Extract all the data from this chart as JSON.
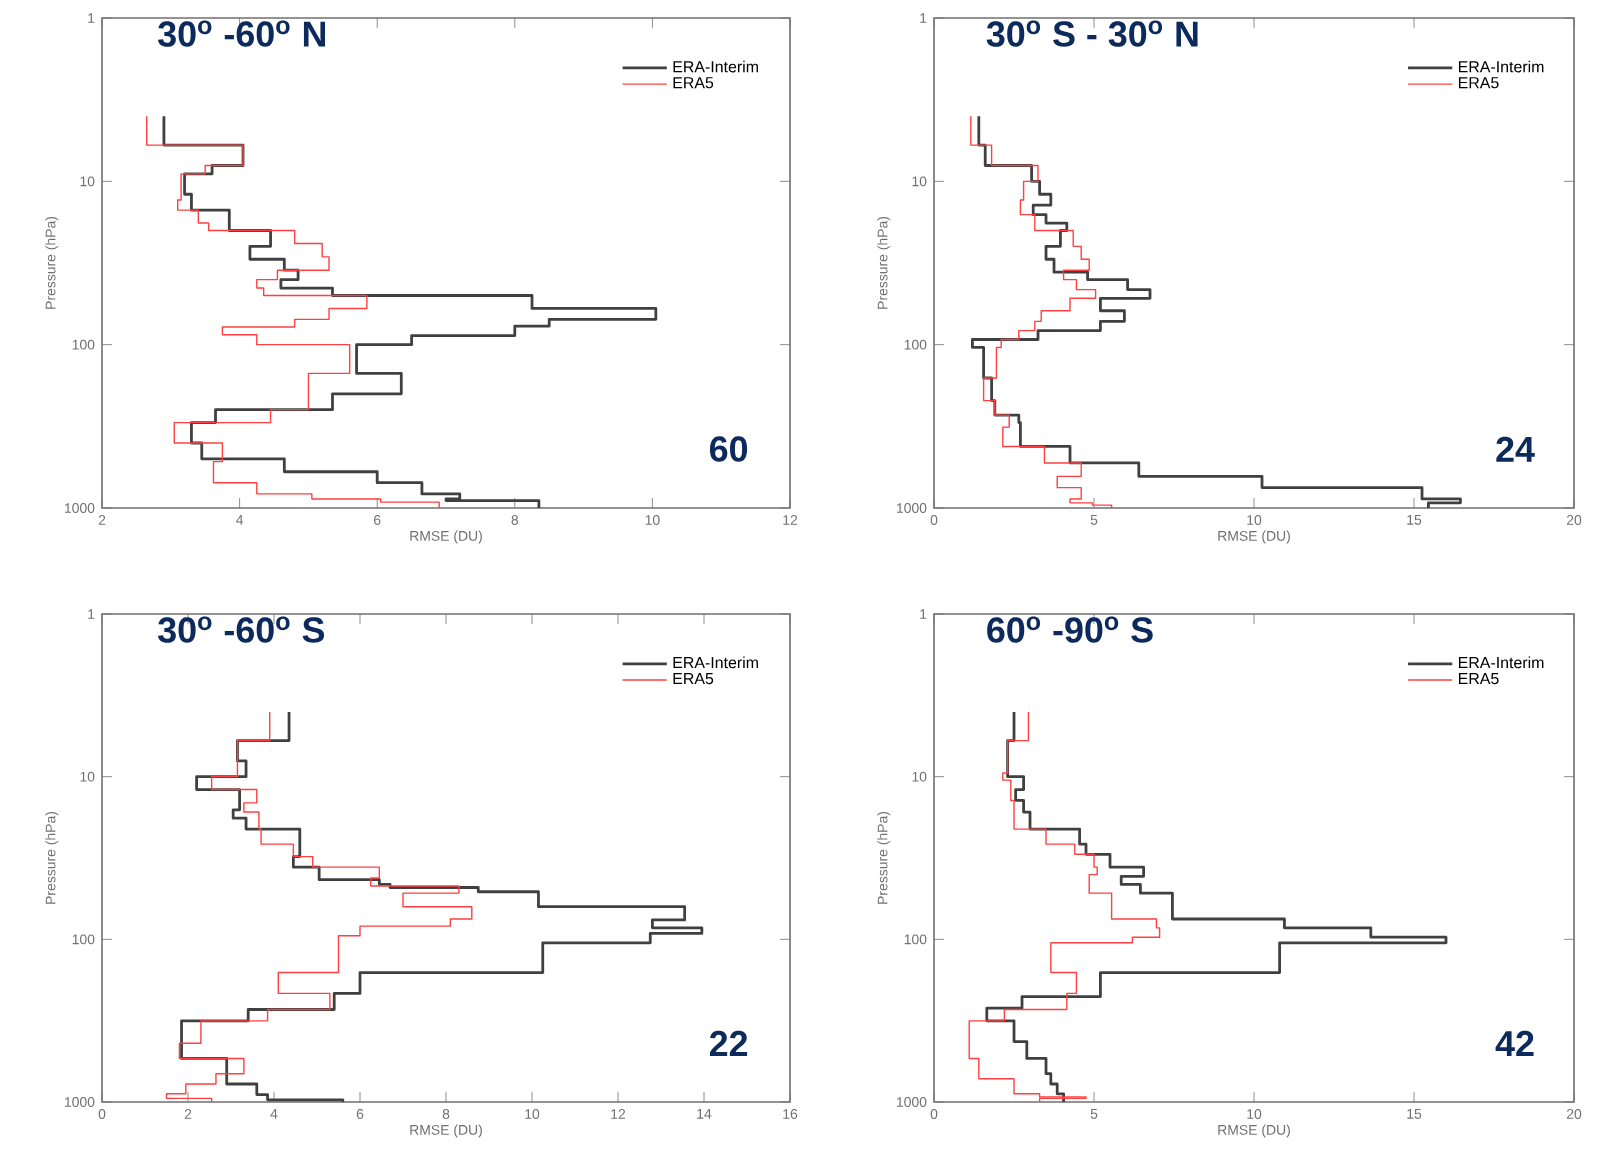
{
  "chart_data": [
    {
      "type": "step",
      "title": "30$^{o}$ -60$^{o}$ N",
      "xlabel": "RMSE (DU)",
      "ylabel": "Pressure (hPa)",
      "xlim": [
        2,
        12
      ],
      "xticks": [
        2,
        4,
        6,
        8,
        10,
        12
      ],
      "ylim": [
        1000,
        1
      ],
      "yticks": [
        1,
        10,
        100,
        1000
      ],
      "log": "y",
      "legend": "top right",
      "annotations": [
        "60"
      ],
      "series": [
        {
          "name": "ERA-Interim",
          "color": "#404040",
          "x": [
            2.9,
            4.05,
            3.6,
            3.2,
            3.3,
            3.85,
            4.45,
            4.15,
            4.65,
            4.85,
            4.6,
            5.35,
            8.25,
            10.05,
            8.5,
            8.0,
            6.5,
            5.7,
            6.35,
            5.35,
            3.65,
            3.3,
            3.45,
            4.65,
            6.0,
            6.65,
            7.2,
            7.0,
            8.35,
            8.35
          ],
          "values": [
            4,
            6,
            8,
            9,
            12,
            15,
            20,
            25,
            30,
            35,
            40,
            45,
            50,
            60,
            70,
            77,
            88,
            100,
            150,
            200,
            250,
            300,
            400,
            500,
            600,
            700,
            820,
            880,
            900,
            1000
          ]
        },
        {
          "name": "ERA5",
          "color": "#ff4040",
          "x": [
            2.65,
            4.05,
            3.5,
            3.15,
            3.1,
            3.4,
            3.55,
            4.8,
            5.2,
            5.3,
            4.55,
            4.25,
            4.35,
            5.85,
            5.3,
            4.8,
            3.75,
            4.25,
            5.6,
            5.0,
            4.45,
            3.05,
            3.75,
            3.62,
            4.25,
            5.05,
            6.05,
            6.9,
            6.9
          ],
          "values": [
            4,
            6,
            8,
            9,
            13,
            15,
            18,
            20,
            24,
            29,
            35,
            40,
            45,
            50,
            60,
            70,
            78,
            87,
            100,
            150,
            250,
            300,
            400,
            520,
            700,
            820,
            880,
            920,
            1000
          ]
        }
      ]
    },
    {
      "type": "step",
      "title": "30$^{o}$ S - 30$^{o}$ N",
      "xlabel": "RMSE (DU)",
      "ylabel": "Pressure (hPa)",
      "xlim": [
        0,
        20
      ],
      "xticks": [
        0,
        5,
        10,
        15,
        20
      ],
      "ylim": [
        1000,
        1
      ],
      "yticks": [
        1,
        10,
        100,
        1000
      ],
      "log": "y",
      "legend": "top right",
      "annotations": [
        "24"
      ],
      "series": [
        {
          "name": "ERA-Interim",
          "color": "#404040",
          "x": [
            1.4,
            1.6,
            3.05,
            3.3,
            3.65,
            3.1,
            3.5,
            4.15,
            3.95,
            3.5,
            3.75,
            4.8,
            6.05,
            6.75,
            5.2,
            5.95,
            5.2,
            3.25,
            1.2,
            1.55,
            1.8,
            1.9,
            2.65,
            2.7,
            4.25,
            6.4,
            10.25,
            15.25,
            16.45,
            15.45,
            15.45
          ],
          "values": [
            4,
            6,
            8,
            10,
            12,
            14,
            16,
            18,
            20,
            25,
            30,
            36,
            40,
            46,
            52,
            62,
            72,
            82,
            93,
            104,
            160,
            220,
            270,
            300,
            420,
            530,
            640,
            750,
            880,
            930,
            1000
          ]
        },
        {
          "name": "ERA5",
          "color": "#ff4040",
          "x": [
            1.15,
            1.8,
            3.25,
            2.8,
            2.7,
            3.15,
            4.35,
            4.6,
            4.85,
            4.05,
            4.45,
            5.05,
            4.25,
            3.35,
            3.15,
            2.65,
            2.1,
            1.95,
            1.55,
            1.9,
            2.35,
            2.15,
            3.45,
            4.6,
            3.85,
            4.6,
            4.25,
            4.95,
            5.55,
            5.55
          ],
          "values": [
            4,
            6,
            8,
            10,
            13,
            16,
            20,
            25,
            30,
            35,
            40,
            46,
            52,
            62,
            72,
            82,
            93,
            104,
            160,
            220,
            270,
            320,
            420,
            530,
            640,
            750,
            880,
            930,
            960,
            1000
          ]
        }
      ]
    },
    {
      "type": "step",
      "title": "30$^{o}$ -60$^{o}$ S",
      "xlabel": "RMSE (DU)",
      "ylabel": "Pressure (hPa)",
      "xlim": [
        0,
        16
      ],
      "xticks": [
        0,
        2,
        4,
        6,
        8,
        10,
        12,
        14,
        16
      ],
      "ylim": [
        1000,
        1
      ],
      "yticks": [
        1,
        10,
        100,
        1000
      ],
      "log": "y",
      "legend": "top right",
      "annotations": [
        "22"
      ],
      "series": [
        {
          "name": "ERA-Interim",
          "color": "#404040",
          "x": [
            4.35,
            3.15,
            3.35,
            2.2,
            3.2,
            3.05,
            3.35,
            4.6,
            4.45,
            5.05,
            6.45,
            6.7,
            8.75,
            10.15,
            13.55,
            12.8,
            13.95,
            12.75,
            10.25,
            6.0,
            5.4,
            3.4,
            1.85,
            2.9,
            3.6,
            3.85,
            5.6,
            5.6
          ],
          "values": [
            4,
            6,
            8,
            10,
            12,
            16,
            18,
            21,
            31,
            36,
            43,
            46,
            48,
            51,
            63,
            76,
            85,
            92,
            105,
            160,
            215,
            270,
            317,
            540,
            775,
            900,
            970,
            1000
          ]
        },
        {
          "name": "ERA5",
          "color": "#ff4040",
          "x": [
            3.9,
            3.15,
            2.55,
            3.6,
            3.3,
            3.65,
            3.7,
            4.45,
            4.9,
            6.45,
            6.25,
            8.3,
            7.0,
            8.6,
            8.1,
            6.0,
            5.5,
            4.1,
            5.3,
            3.85,
            2.3,
            1.8,
            3.3,
            2.65,
            1.95,
            1.5,
            2.55,
            2.55
          ],
          "values": [
            4,
            6,
            10,
            12,
            14.5,
            16.5,
            21,
            26,
            31,
            36,
            42,
            47,
            52,
            63,
            75,
            83,
            95,
            160,
            215,
            270,
            317,
            435,
            540,
            670,
            775,
            890,
            950,
            1000
          ]
        }
      ]
    },
    {
      "type": "step",
      "title": "60$^{o}$ -90$^{o}$ S",
      "xlabel": "RMSE (DU)",
      "ylabel": "Pressure (hPa)",
      "xlim": [
        0,
        20
      ],
      "xticks": [
        0,
        5,
        10,
        15,
        20
      ],
      "ylim": [
        1000,
        1
      ],
      "yticks": [
        1,
        10,
        100,
        1000
      ],
      "log": "y",
      "legend": "top right",
      "annotations": [
        "42"
      ],
      "series": [
        {
          "name": "ERA-Interim",
          "color": "#404040",
          "x": [
            2.5,
            2.3,
            2.8,
            2.55,
            2.8,
            3.0,
            4.55,
            4.75,
            5.5,
            6.55,
            5.85,
            6.45,
            7.45,
            10.95,
            13.65,
            16.0,
            10.8,
            5.2,
            2.75,
            1.65,
            2.5,
            2.9,
            3.5,
            3.65,
            3.85,
            4.05,
            4.05
          ],
          "values": [
            4,
            6,
            10,
            12,
            14,
            16.5,
            21,
            26,
            30,
            36,
            41,
            46,
            52,
            75,
            85,
            97,
            105,
            160,
            225,
            265,
            317,
            425,
            540,
            670,
            775,
            890,
            1000
          ]
        },
        {
          "name": "ERA5",
          "color": "#ff4040",
          "x": [
            2.95,
            2.3,
            2.15,
            2.4,
            2.5,
            3.5,
            4.4,
            5.0,
            5.1,
            4.85,
            5.55,
            6.95,
            7.05,
            6.2,
            3.65,
            4.45,
            4.15,
            2.2,
            1.1,
            1.4,
            2.5,
            3.3,
            4.75,
            3.3,
            3.3
          ],
          "values": [
            4,
            6,
            9.5,
            10.5,
            14,
            21,
            26,
            30,
            36,
            40,
            52,
            75,
            85,
            97,
            105,
            160,
            215,
            270,
            317,
            540,
            720,
            890,
            930,
            950,
            1000
          ]
        }
      ]
    }
  ]
}
